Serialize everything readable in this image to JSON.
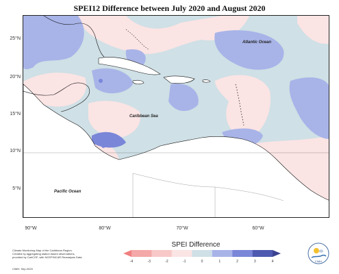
{
  "title": "SPEI12 Difference between July 2020 and August 2020",
  "map": {
    "lat_labels": [
      "25°N",
      "20°N",
      "15°N",
      "10°N",
      "5°N"
    ],
    "lon_labels": [
      "90°W",
      "80°W",
      "70°W",
      "60°W"
    ],
    "places": {
      "atlantic": "Atlantic Ocean",
      "caribbean": "Caribbean Sea",
      "pacific": "Pacific Ocean"
    }
  },
  "legend": {
    "title": "SPEI Difference",
    "ticks": [
      "-4",
      "-3",
      "-2",
      "-1",
      "0",
      "1",
      "2",
      "3",
      "4"
    ],
    "colors": [
      "#f08080",
      "#f4a8a8",
      "#f8c8c8",
      "#fbe4e4",
      "#cfe0e6",
      "#a8b4e8",
      "#7a86d8",
      "#4e5ab0",
      "#3a4290"
    ]
  },
  "credits": {
    "lines": [
      "Climate Monitoring Map of the Caribbean Region.",
      "Created by aggregating station based observations,",
      "provided by CariCOF, with NCEP/NCAR Reanalysis Data."
    ],
    "date": "CIMH: Sep-2020"
  },
  "logo": {
    "text": "CIMH"
  }
}
